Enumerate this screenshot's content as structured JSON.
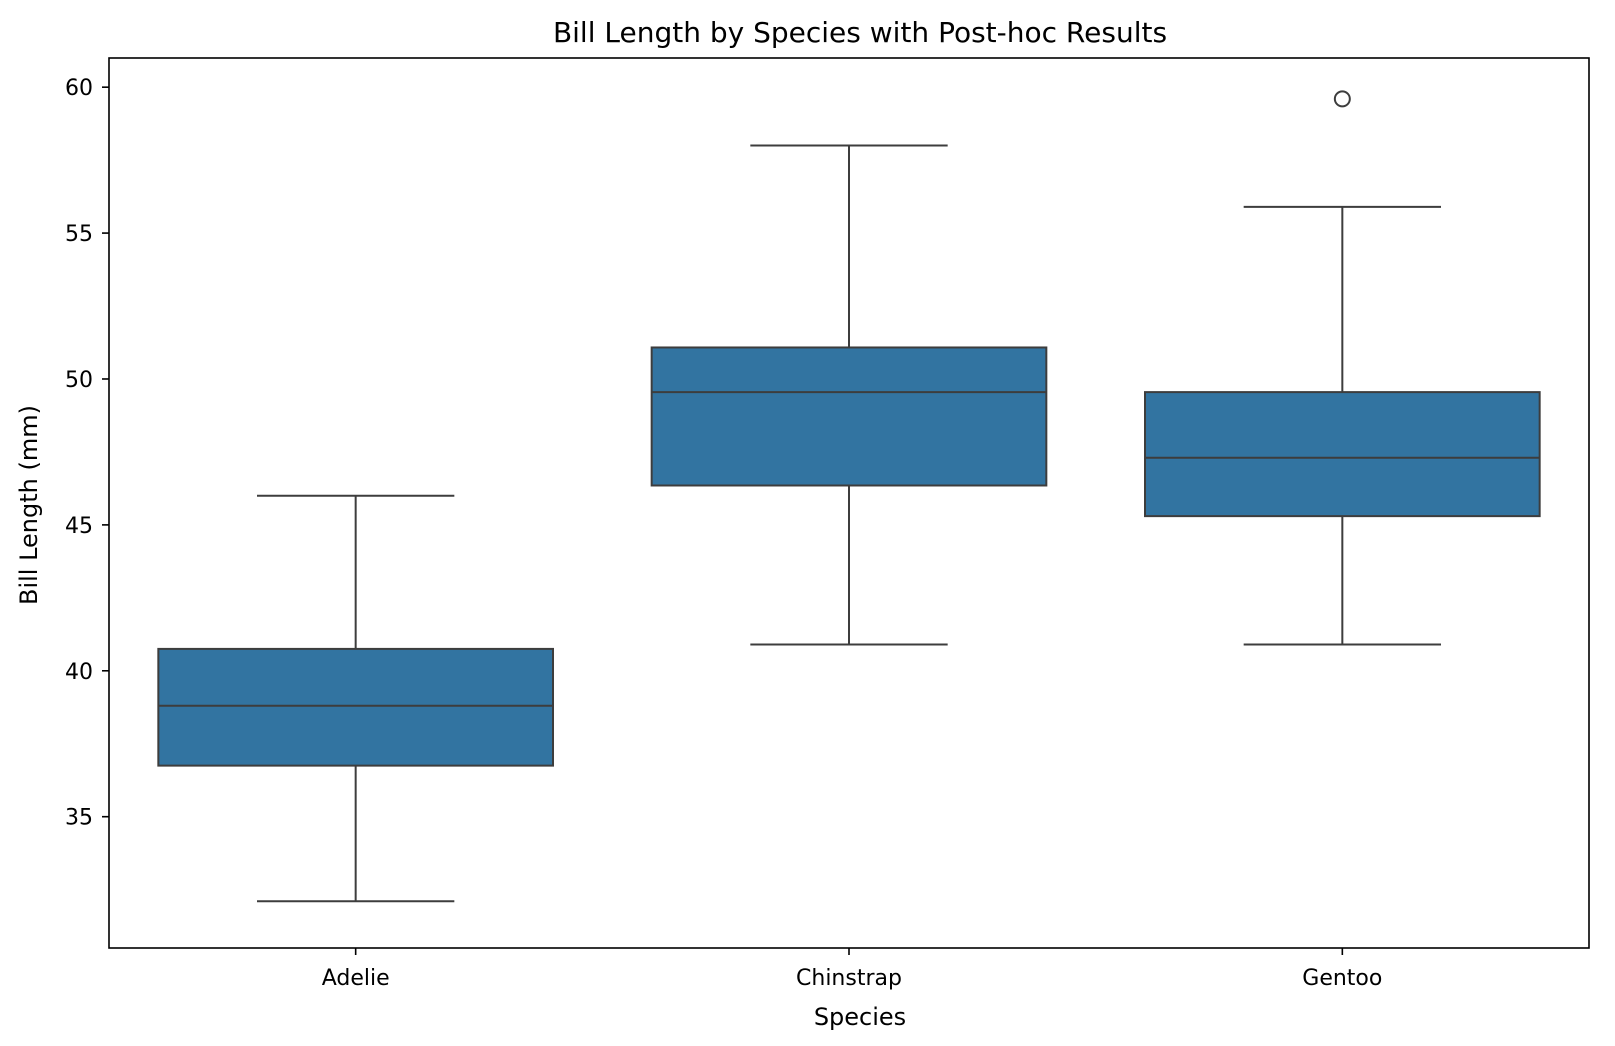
{
  "chart_data": {
    "type": "box",
    "title": "Bill Length by Species with Post-hoc Results",
    "xlabel": "Species",
    "ylabel": "Bill Length (mm)",
    "categories": [
      "Adelie",
      "Chinstrap",
      "Gentoo"
    ],
    "ylim": [
      30.5,
      61.0
    ],
    "yticks": [
      35,
      40,
      45,
      50,
      55,
      60
    ],
    "grid": false,
    "box_color": "#3274a1",
    "line_color": "#3d3d3d",
    "boxes": [
      {
        "category": "Adelie",
        "whisker_low": 32.1,
        "q1": 36.75,
        "median": 38.8,
        "q3": 40.75,
        "whisker_high": 46.0,
        "outliers": []
      },
      {
        "category": "Chinstrap",
        "whisker_low": 40.9,
        "q1": 46.35,
        "median": 49.55,
        "q3": 51.08,
        "whisker_high": 58.0,
        "outliers": []
      },
      {
        "category": "Gentoo",
        "whisker_low": 40.9,
        "q1": 45.3,
        "median": 47.3,
        "q3": 49.55,
        "whisker_high": 55.9,
        "outliers": [
          59.6
        ]
      }
    ]
  }
}
